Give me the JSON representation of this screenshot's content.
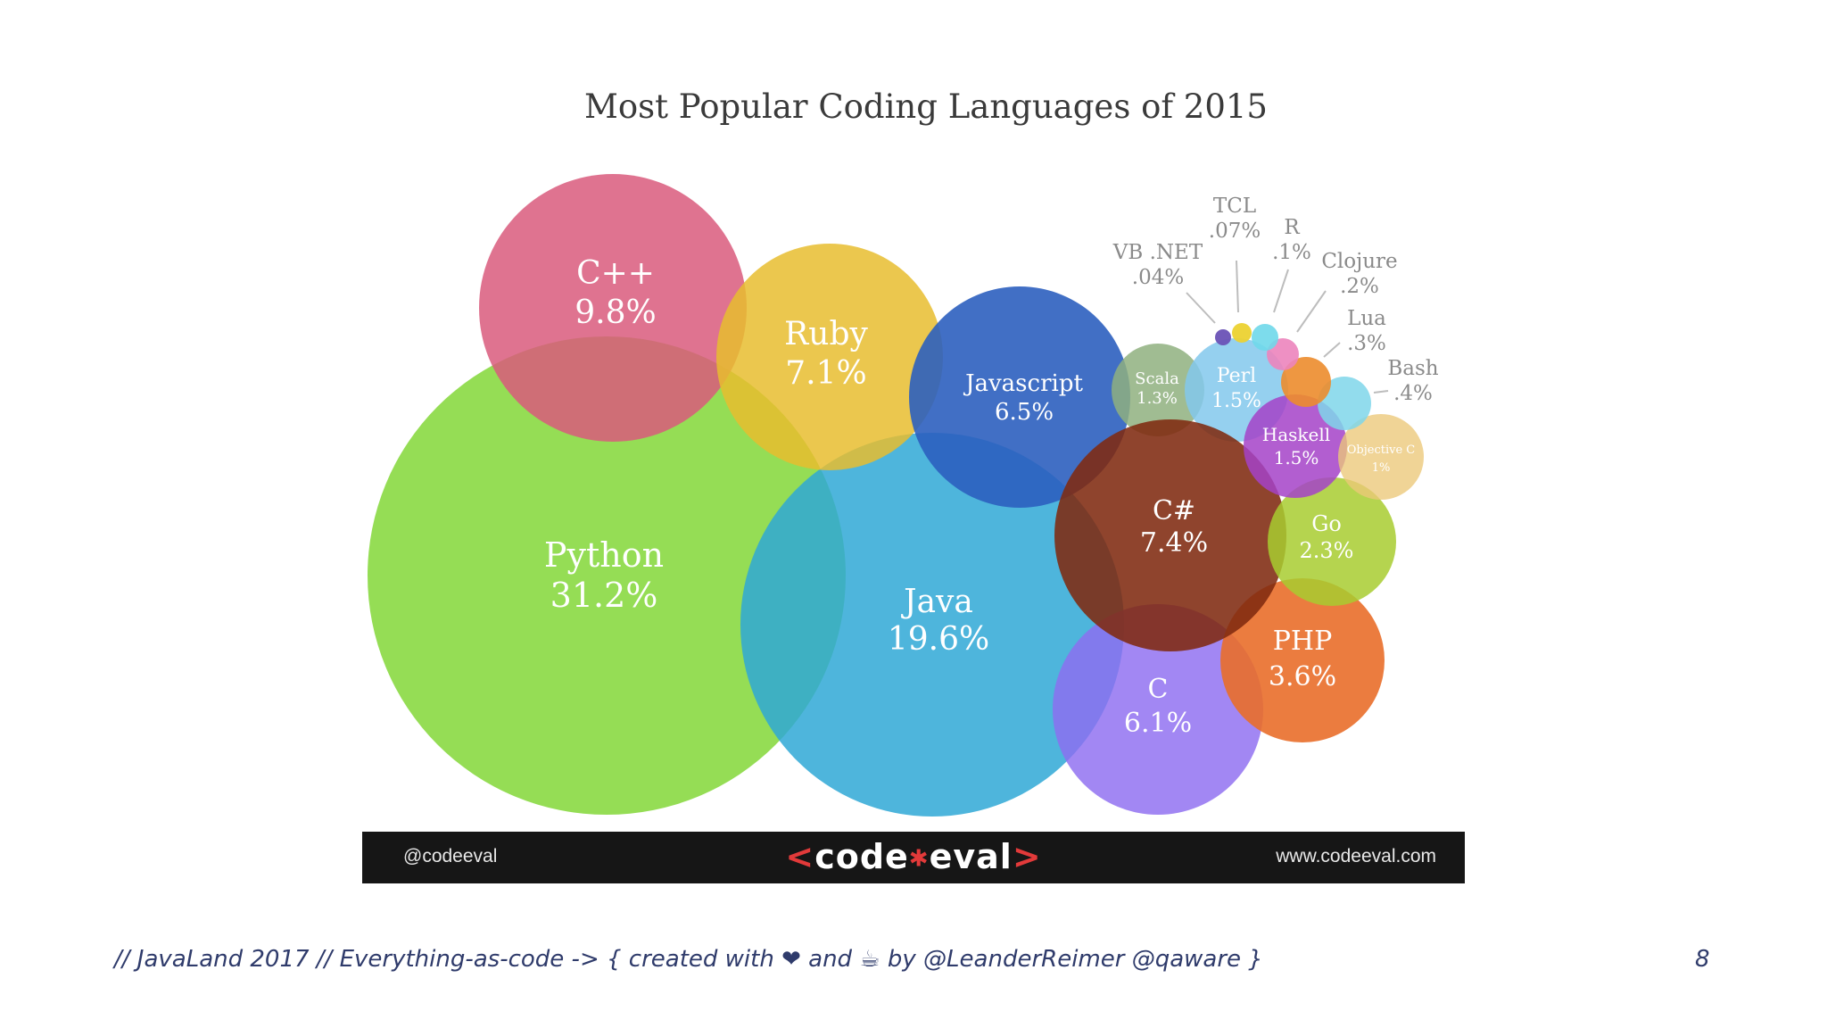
{
  "chart_data": {
    "type": "bubble",
    "title": "Most Popular Coding Languages of 2015",
    "unit": "%",
    "series": [
      {
        "name": "Python",
        "label": "31.2%",
        "value": 31.2,
        "color": "#86d83d"
      },
      {
        "name": "Java",
        "label": "19.6%",
        "value": 19.6,
        "color": "#2fa8d6"
      },
      {
        "name": "C++",
        "label": "9.8%",
        "value": 9.8,
        "color": "#d95a7c"
      },
      {
        "name": "Ruby",
        "label": "7.1%",
        "value": 7.1,
        "color": "#e7bd2f"
      },
      {
        "name": "Javascript",
        "label": "6.5%",
        "value": 6.5,
        "color": "#2c5fbf"
      },
      {
        "name": "C",
        "label": "6.1%",
        "value": 6.1,
        "color": "#8e6cf0"
      },
      {
        "name": "C#",
        "label": "7.4%",
        "value": 7.4,
        "color": "#7f2a10"
      },
      {
        "name": "PHP",
        "label": "3.6%",
        "value": 3.6,
        "color": "#e96e2a"
      },
      {
        "name": "Go",
        "label": "2.3%",
        "value": 2.3,
        "color": "#a8cc30"
      },
      {
        "name": "Scala",
        "label": "1.3%",
        "value": 1.3,
        "color": "#8fb07f"
      },
      {
        "name": "Perl",
        "label": "1.5%",
        "value": 1.5,
        "color": "#82c8ec"
      },
      {
        "name": "Haskell",
        "label": "1.5%",
        "value": 1.5,
        "color": "#a442c8"
      },
      {
        "name": "Objective C",
        "label": "1%",
        "value": 1.0,
        "color": "#ecc878"
      },
      {
        "name": "Bash",
        "label": ".4%",
        "value": 0.4,
        "color": "#7fd6ea"
      },
      {
        "name": "Lua",
        "label": ".3%",
        "value": 0.3,
        "color": "#ec8c2c"
      },
      {
        "name": "Clojure",
        "label": ".2%",
        "value": 0.2,
        "color": "#ec84bc"
      },
      {
        "name": "R",
        "label": ".1%",
        "value": 0.1,
        "color": "#6fd8ea"
      },
      {
        "name": "TCL",
        "label": ".07%",
        "value": 0.07,
        "color": "#ecd232"
      },
      {
        "name": "VB .NET",
        "label": ".04%",
        "value": 0.04,
        "color": "#6a52b6"
      }
    ]
  },
  "banner": {
    "handle": "@codeeval",
    "logo_left": "<",
    "logo_text_a": "code",
    "logo_star": "✱",
    "logo_text_b": "eval",
    "logo_right": ">",
    "website": "www.codeeval.com"
  },
  "footer": {
    "text": "// JavaLand 2017 // Everything-as-code -> { created with ❤ and ☕ by @LeanderReimer @qaware }",
    "page_number": "8"
  }
}
